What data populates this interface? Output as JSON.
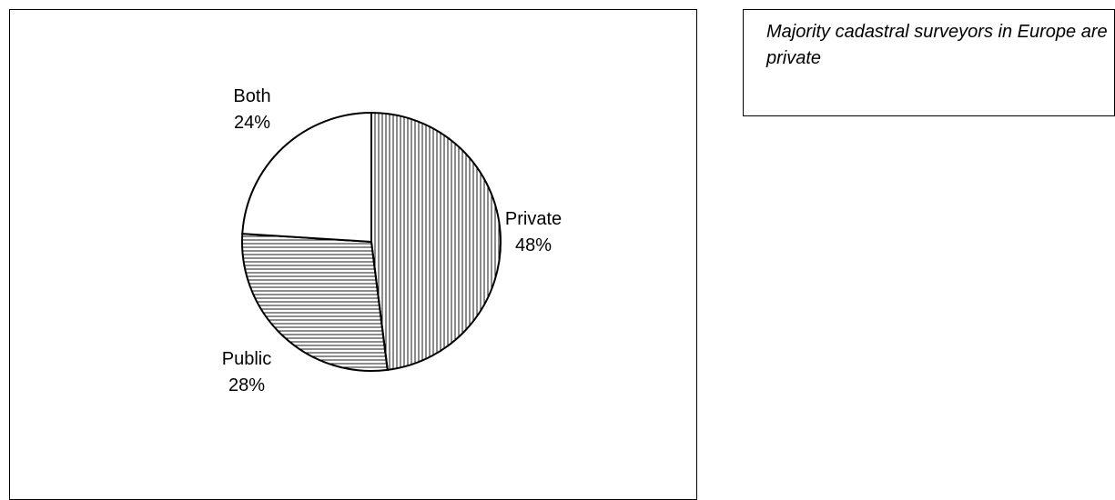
{
  "chart_data": {
    "type": "pie",
    "start_angle_deg": 0,
    "direction": "clockwise",
    "slices": [
      {
        "label": "Private",
        "value": 48,
        "percent_label": "48%",
        "pattern": "vertical-lines"
      },
      {
        "label": "Public",
        "value": 28,
        "percent_label": "28%",
        "pattern": "horizontal-lines"
      },
      {
        "label": "Both",
        "value": 24,
        "percent_label": "24%",
        "pattern": "none"
      }
    ]
  },
  "caption": "Majority cadastral surveyors in Europe are private",
  "colors": {
    "stroke": "#000000",
    "background": "#ffffff"
  }
}
